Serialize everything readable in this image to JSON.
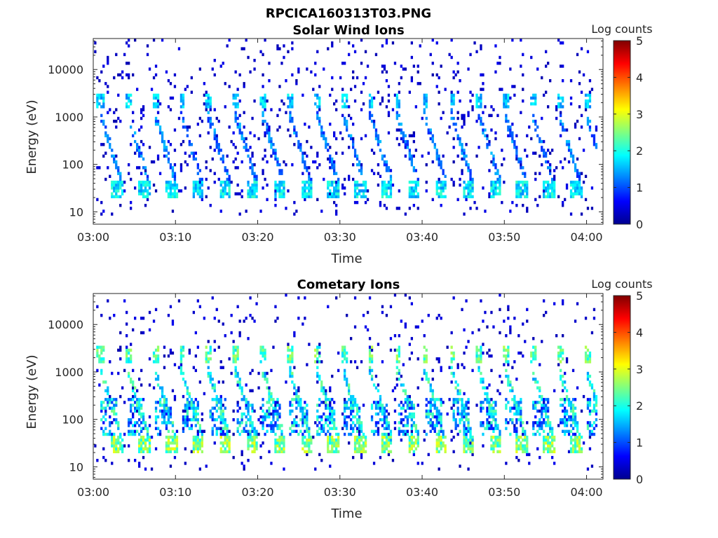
{
  "figure_title": "RPCICA160313T03.PNG",
  "colormap": [
    "#00008f",
    "#0000ff",
    "#0080ff",
    "#00ffff",
    "#80ff80",
    "#ffff00",
    "#ff8000",
    "#ff0000",
    "#800000"
  ],
  "chart_data": [
    {
      "type": "heatmap",
      "title": "Solar Wind Ions",
      "xlabel": "Time",
      "ylabel": "Energy (eV)",
      "x_ticks": [
        "03:00",
        "03:10",
        "03:20",
        "03:30",
        "03:40",
        "03:50",
        "04:00"
      ],
      "x_range_min": [
        0,
        62
      ],
      "y_ticks": [
        "10",
        "100",
        "1000",
        "10000"
      ],
      "y_scale": "log",
      "y_range_eV": [
        5.5,
        45000
      ],
      "colorbar": {
        "label": "Log counts",
        "ticks": [
          "0",
          "1",
          "2",
          "3",
          "4",
          "5"
        ],
        "range": [
          0,
          5
        ]
      },
      "pattern": {
        "sweep_period_min": 3.3,
        "sweep_starts_min": [
          0.5,
          3.8,
          7.1,
          10.3,
          13.6,
          16.9,
          20.2,
          23.5,
          26.8,
          30.0,
          33.3,
          36.6,
          39.9,
          43.2,
          46.5,
          49.7,
          53.0,
          56.3,
          59.6
        ],
        "high_energy_band_eV": [
          1500,
          3000
        ],
        "low_energy_band_eV": [
          20,
          45
        ],
        "peak_log_counts": 2.2,
        "noise_density": 0.05
      }
    },
    {
      "type": "heatmap",
      "title": "Cometary Ions",
      "xlabel": "Time",
      "ylabel": "Energy (eV)",
      "x_ticks": [
        "03:00",
        "03:10",
        "03:20",
        "03:30",
        "03:40",
        "03:50",
        "04:00"
      ],
      "x_range_min": [
        0,
        62
      ],
      "y_ticks": [
        "10",
        "100",
        "1000",
        "10000"
      ],
      "y_scale": "log",
      "y_range_eV": [
        5.5,
        45000
      ],
      "colorbar": {
        "label": "Log counts",
        "ticks": [
          "0",
          "1",
          "2",
          "3",
          "4",
          "5"
        ],
        "range": [
          0,
          5
        ]
      },
      "pattern": {
        "sweep_period_min": 3.3,
        "sweep_starts_min": [
          0.5,
          3.8,
          7.1,
          10.3,
          13.6,
          16.9,
          20.2,
          23.5,
          26.8,
          30.0,
          33.3,
          36.6,
          39.9,
          43.2,
          46.5,
          49.7,
          53.0,
          56.3,
          59.6
        ],
        "high_energy_band_eV": [
          1500,
          3500
        ],
        "low_energy_band_eV": [
          20,
          45
        ],
        "peak_log_counts": 3.1,
        "noise_density": 0.03
      }
    }
  ]
}
